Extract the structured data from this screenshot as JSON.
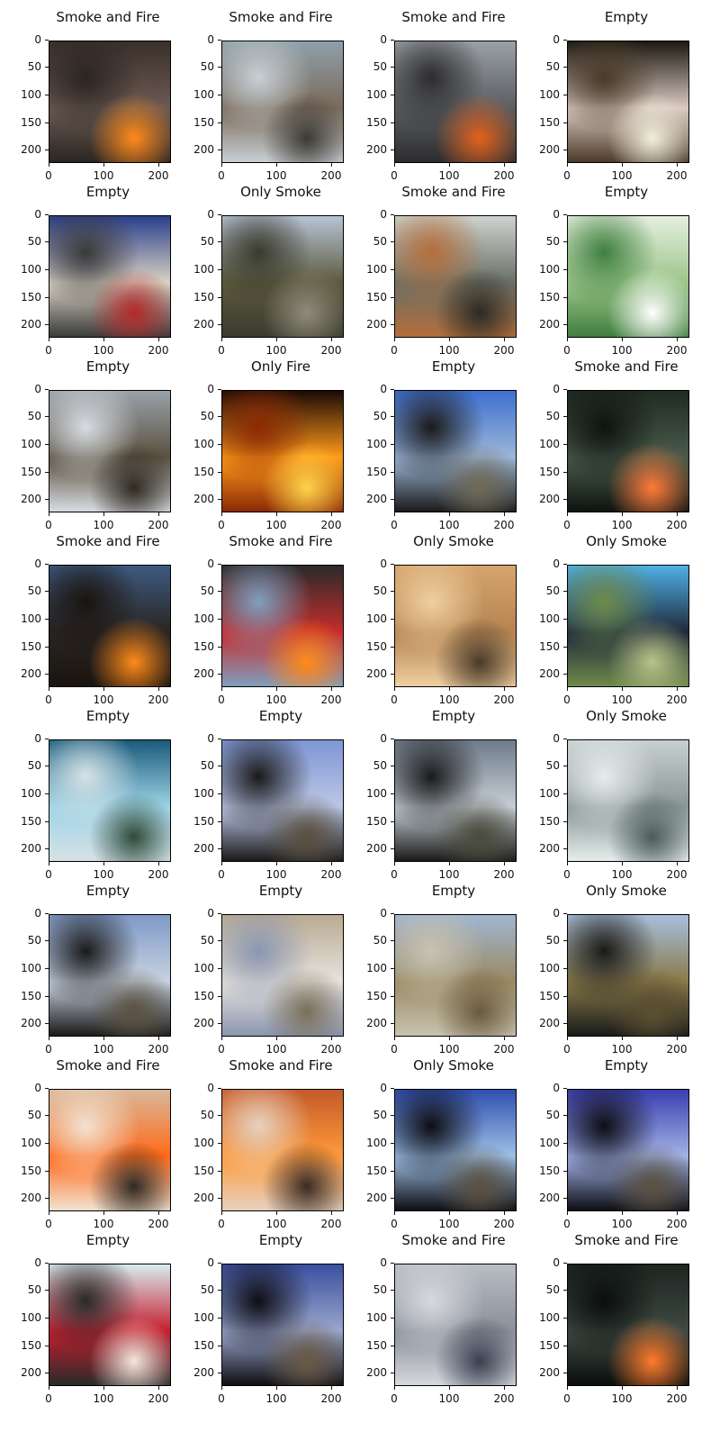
{
  "figure": {
    "axis": {
      "y_ticks": [
        "0",
        "50",
        "100",
        "150",
        "200"
      ],
      "x_ticks": [
        "0",
        "100",
        "200"
      ]
    },
    "panels": [
      {
        "title": "Smoke and Fire",
        "scene": "fire-hillside",
        "colors": [
          "#3a2f2b",
          "#6b5a52",
          "#ff8a1a",
          "#2b2522"
        ]
      },
      {
        "title": "Smoke and Fire",
        "scene": "camera-bird",
        "colors": [
          "#8fa0aa",
          "#7a6a5a",
          "#3c3a35",
          "#c9cfd4"
        ]
      },
      {
        "title": "Smoke and Fire",
        "scene": "blurred-fire",
        "colors": [
          "#9aa0a4",
          "#5b5e62",
          "#e2621c",
          "#2c2c2e"
        ]
      },
      {
        "title": "Empty",
        "scene": "lamp",
        "colors": [
          "#1c1812",
          "#d9c9c0",
          "#f2eedb",
          "#4b3a28"
        ]
      },
      {
        "title": "Empty",
        "scene": "team-photo",
        "colors": [
          "#2a3f8c",
          "#d9d2c3",
          "#b22a2a",
          "#3a3a3a"
        ]
      },
      {
        "title": "Only Smoke",
        "scene": "hills-smoke",
        "colors": [
          "#b7c4d6",
          "#5d5a3d",
          "#8f8b7a",
          "#3a3a2f"
        ]
      },
      {
        "title": "Smoke and Fire",
        "scene": "hazy-smoke",
        "colors": [
          "#cfd3cf",
          "#6a6f66",
          "#2c2a24",
          "#b46e3a"
        ]
      },
      {
        "title": "Empty",
        "scene": "plastic-bag",
        "colors": [
          "#e6efe0",
          "#9cc58a",
          "#ffffff",
          "#3f7f3f"
        ]
      },
      {
        "title": "Empty",
        "scene": "mountain-cloudy",
        "colors": [
          "#9aa2aa",
          "#5a5140",
          "#2f2a22",
          "#d7dbe0"
        ]
      },
      {
        "title": "Only Fire",
        "scene": "burning-structure",
        "colors": [
          "#1a0a05",
          "#ff9a1a",
          "#ffd34a",
          "#8a2a05"
        ]
      },
      {
        "title": "Empty",
        "scene": "fisheye-valley",
        "colors": [
          "#3e6fd0",
          "#9cb7d8",
          "#6f6a56",
          "#1a1a1a"
        ]
      },
      {
        "title": "Smoke and Fire",
        "scene": "aerial-night-fire",
        "colors": [
          "#1f2a22",
          "#4a5a4a",
          "#ff7a3a",
          "#0e1410"
        ]
      },
      {
        "title": "Smoke and Fire",
        "scene": "dusk-smoke-fire",
        "colors": [
          "#3d5a80",
          "#2a2522",
          "#ff8a1a",
          "#1a1410"
        ]
      },
      {
        "title": "Smoke and Fire",
        "scene": "fire-truck",
        "colors": [
          "#2a2a2a",
          "#c62c2c",
          "#ff8a1a",
          "#7f9fbf"
        ]
      },
      {
        "title": "Only Smoke",
        "scene": "orange-haze",
        "colors": [
          "#d6a56e",
          "#b58451",
          "#4a3a2a",
          "#efcfa0"
        ]
      },
      {
        "title": "Only Smoke",
        "scene": "train",
        "colors": [
          "#4fb0e6",
          "#1f2a3a",
          "#b9c28a",
          "#6e8a4a"
        ]
      },
      {
        "title": "Empty",
        "scene": "fisheye-snow",
        "colors": [
          "#1a5a7a",
          "#9dd3e6",
          "#2f4a3a",
          "#d6e2e6"
        ]
      },
      {
        "title": "Empty",
        "scene": "fisheye-blue",
        "colors": [
          "#7f96d6",
          "#bcc7e6",
          "#5a4f3f",
          "#1a1a1a"
        ]
      },
      {
        "title": "Empty",
        "scene": "fisheye-gray",
        "colors": [
          "#6f7a8a",
          "#c7cfd6",
          "#4a4a3a",
          "#1a1a1a"
        ]
      },
      {
        "title": "Only Smoke",
        "scene": "dense-smoke",
        "colors": [
          "#c8cfd2",
          "#8a9696",
          "#4a5a5a",
          "#e6ecec"
        ]
      },
      {
        "title": "Empty",
        "scene": "fisheye-ridge",
        "colors": [
          "#7f9ac7",
          "#c7d2e0",
          "#5a5140",
          "#1a1a1a"
        ]
      },
      {
        "title": "Empty",
        "scene": "blurred-bag",
        "colors": [
          "#b9ab92",
          "#e6e2dc",
          "#7a6f5a",
          "#8a96b0"
        ]
      },
      {
        "title": "Empty",
        "scene": "dry-hills",
        "colors": [
          "#9fb6d1",
          "#9a8a62",
          "#6a5a3f",
          "#c9c2b0"
        ]
      },
      {
        "title": "Only Smoke",
        "scene": "hills-camera",
        "colors": [
          "#a7bfdc",
          "#8a7a4a",
          "#5a4f30",
          "#1a1a1a"
        ]
      },
      {
        "title": "Smoke and Fire",
        "scene": "wildfire-orange",
        "colors": [
          "#d9b89a",
          "#ff6a1a",
          "#2f2a24",
          "#f2e2d0"
        ]
      },
      {
        "title": "Smoke and Fire",
        "scene": "blurred-firefighter",
        "colors": [
          "#c45a2a",
          "#ff9a3a",
          "#3a2a22",
          "#e6d2c0"
        ]
      },
      {
        "title": "Only Smoke",
        "scene": "fisheye-dark-blue",
        "colors": [
          "#2f4fb0",
          "#9fc0e6",
          "#5a5140",
          "#0e0e14"
        ]
      },
      {
        "title": "Empty",
        "scene": "fisheye-dark-blue-2",
        "colors": [
          "#3a3fb0",
          "#a2b2e6",
          "#5a5140",
          "#0e0e14"
        ]
      },
      {
        "title": "Empty",
        "scene": "fashion-red-jacket",
        "colors": [
          "#d8ecf0",
          "#c41e2e",
          "#f5e6dc",
          "#2a2a2a"
        ]
      },
      {
        "title": "Empty",
        "scene": "fisheye-evening",
        "colors": [
          "#3b4fa0",
          "#9aa6cc",
          "#6a5a45",
          "#0e0e14"
        ]
      },
      {
        "title": "Smoke and Fire",
        "scene": "blurred-gray",
        "colors": [
          "#b9bdc4",
          "#8a8f99",
          "#3a3f50",
          "#d6d9de"
        ]
      },
      {
        "title": "Smoke and Fire",
        "scene": "aerial-night-fire-2",
        "colors": [
          "#1c2420",
          "#3f4a44",
          "#ff7a2a",
          "#0a0e0c"
        ]
      }
    ]
  }
}
